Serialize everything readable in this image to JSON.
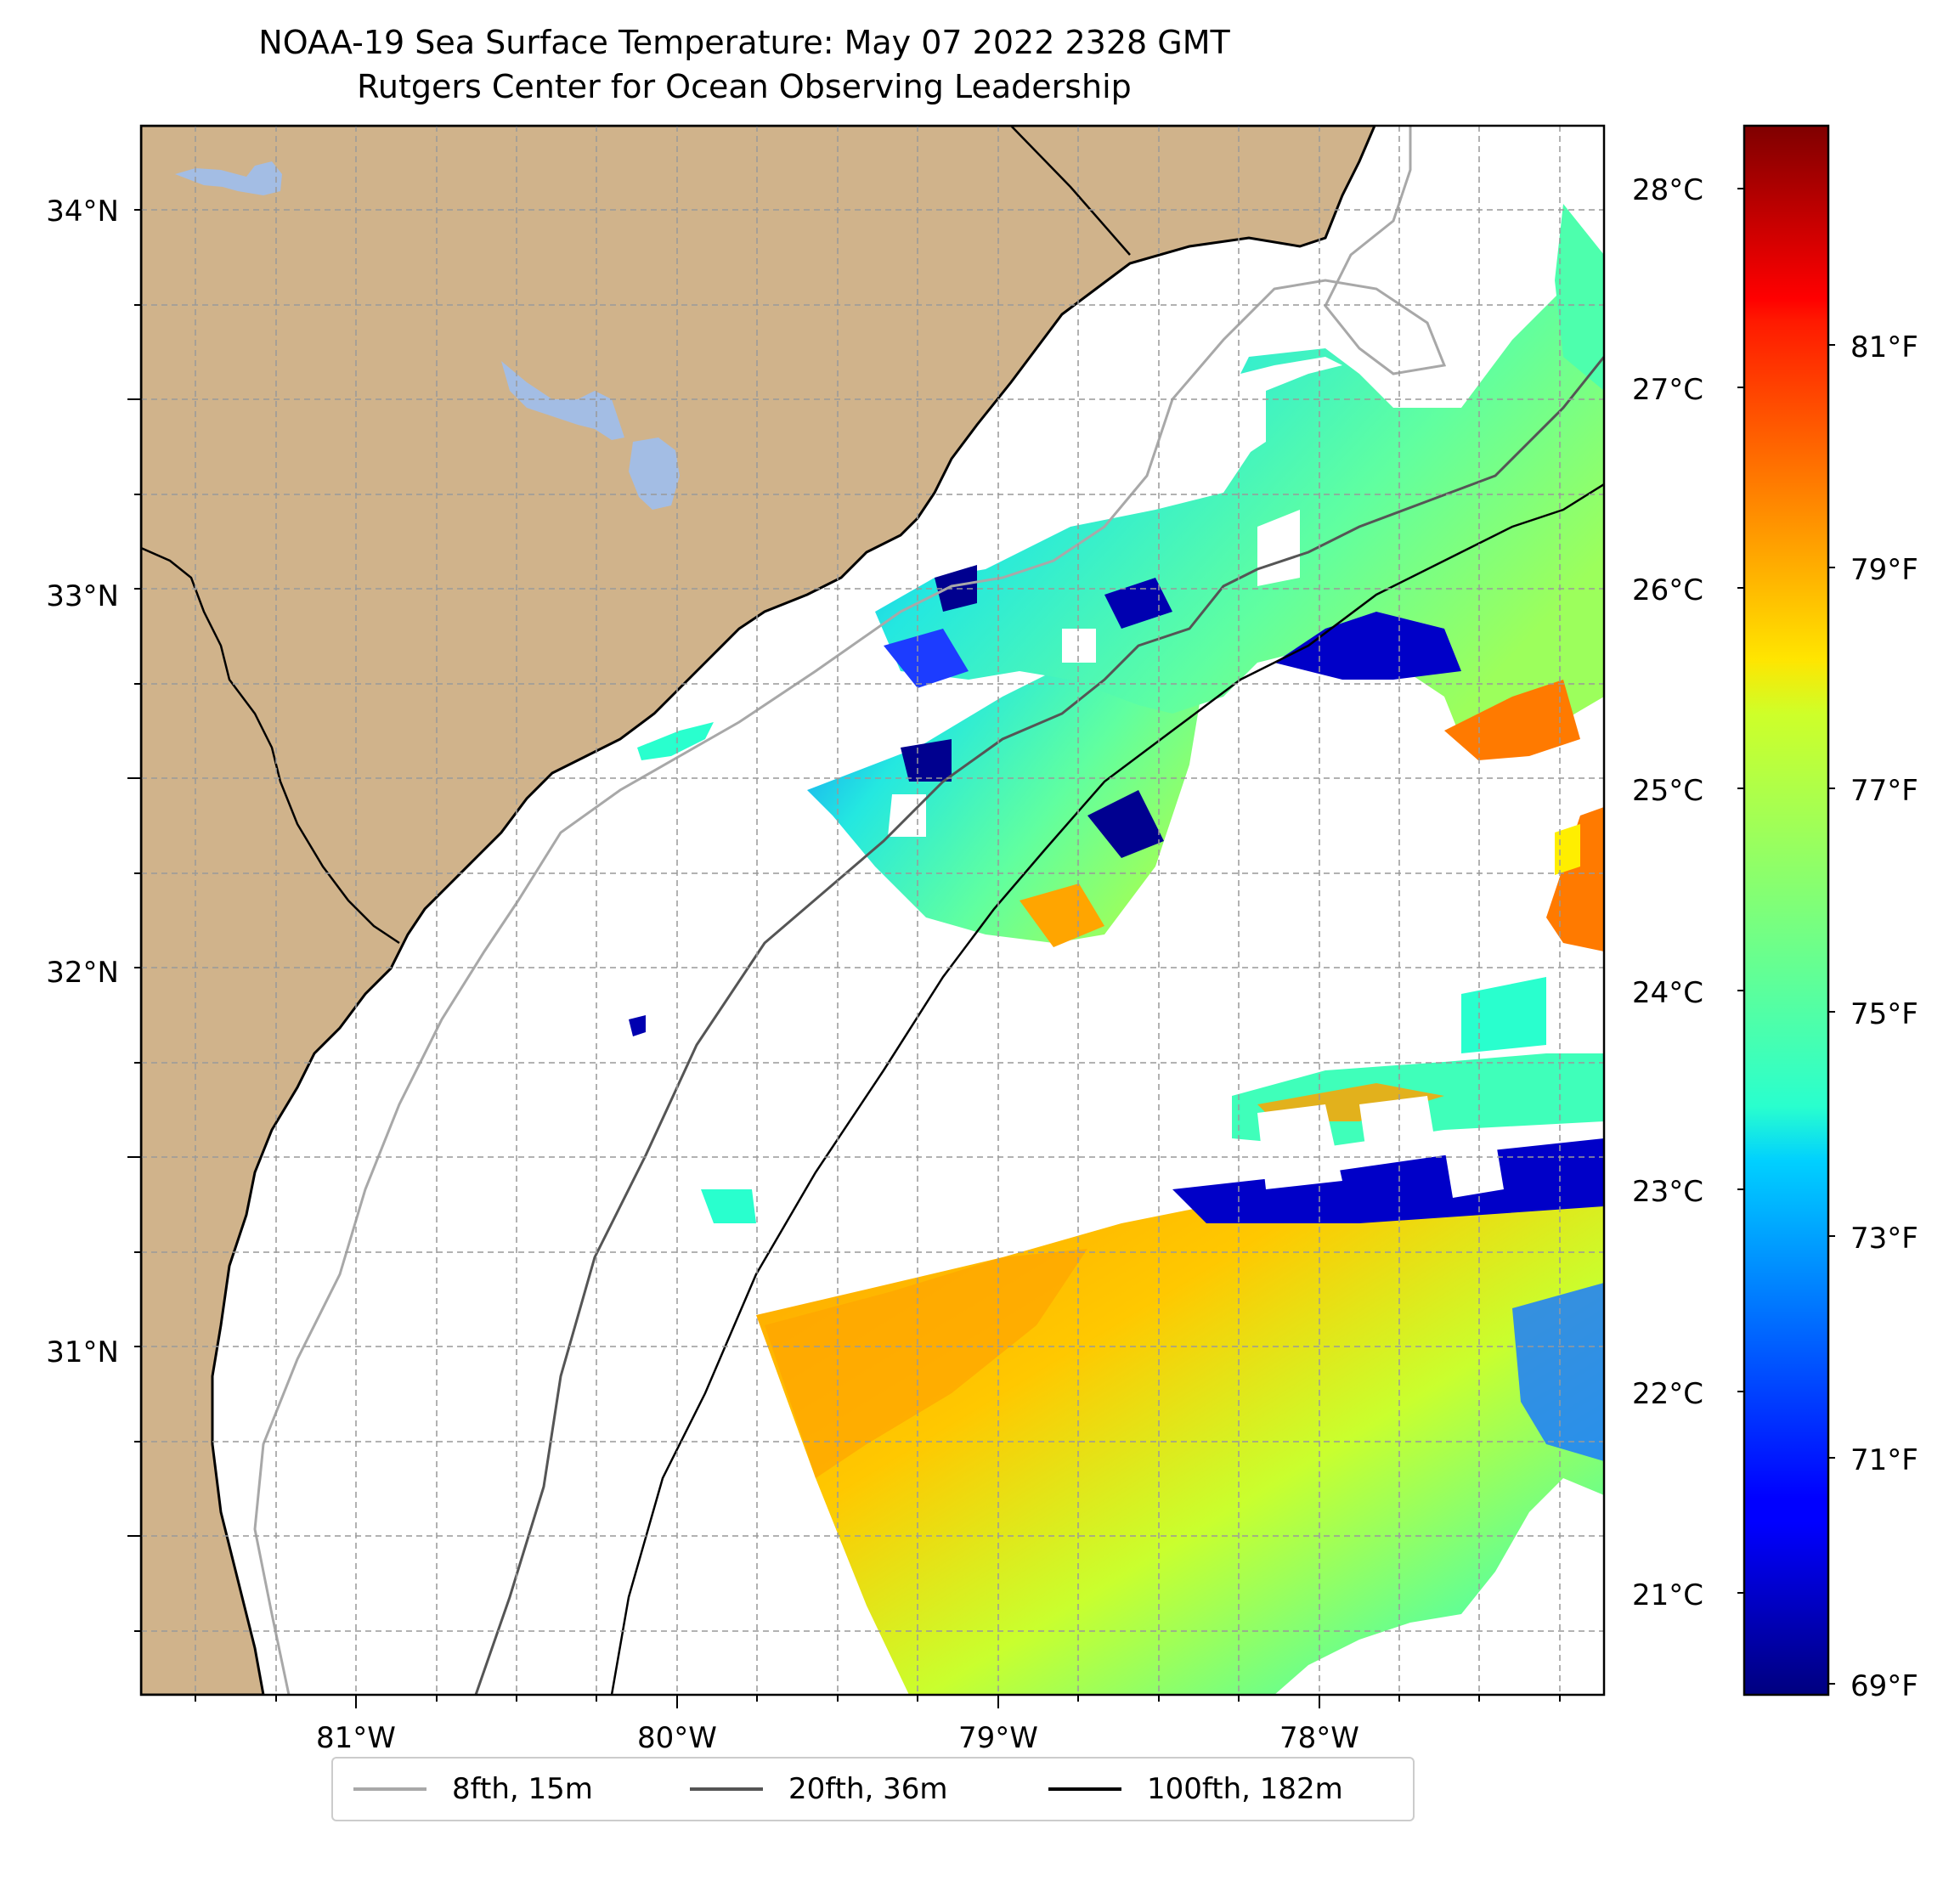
{
  "title": "NOAA-19 Sea Surface Temperature: May 07 2022 2328 GMT",
  "subtitle": "Rutgers Center for Ocean Observing Leadership",
  "map": {
    "lon_range": [
      -81.68,
      -77.13
    ],
    "lat_range": [
      30.08,
      34.22
    ],
    "lat_ticks": [
      {
        "value": 34,
        "label": "34°N"
      },
      {
        "value": 33,
        "label": "33°N"
      },
      {
        "value": 32,
        "label": "32°N"
      },
      {
        "value": 31,
        "label": "31°N"
      }
    ],
    "lon_ticks": [
      {
        "value": -81,
        "label": "81°W"
      },
      {
        "value": -80,
        "label": "80°W"
      },
      {
        "value": -79,
        "label": "79°W"
      },
      {
        "value": -78,
        "label": "78°W"
      }
    ],
    "colors": {
      "land": "#d0b38b",
      "water_bodies": "#a3bde4",
      "coast": "#000000"
    }
  },
  "colorbar": {
    "celsius_labels": [
      "28°C",
      "27°C",
      "26°C",
      "25°C",
      "24°C",
      "23°C",
      "22°C",
      "21°C"
    ],
    "fahrenheit_labels": [
      "81°F",
      "79°F",
      "77°F",
      "75°F",
      "73°F",
      "71°F",
      "69°F"
    ],
    "colormap": "jet"
  },
  "legend": {
    "placement": "bottom-center",
    "items": [
      {
        "label": "8fth, 15m",
        "color": "#a8a8a8"
      },
      {
        "label": "20fth, 36m",
        "color": "#555555"
      },
      {
        "label": "100fth, 182m",
        "color": "#000000"
      }
    ]
  }
}
